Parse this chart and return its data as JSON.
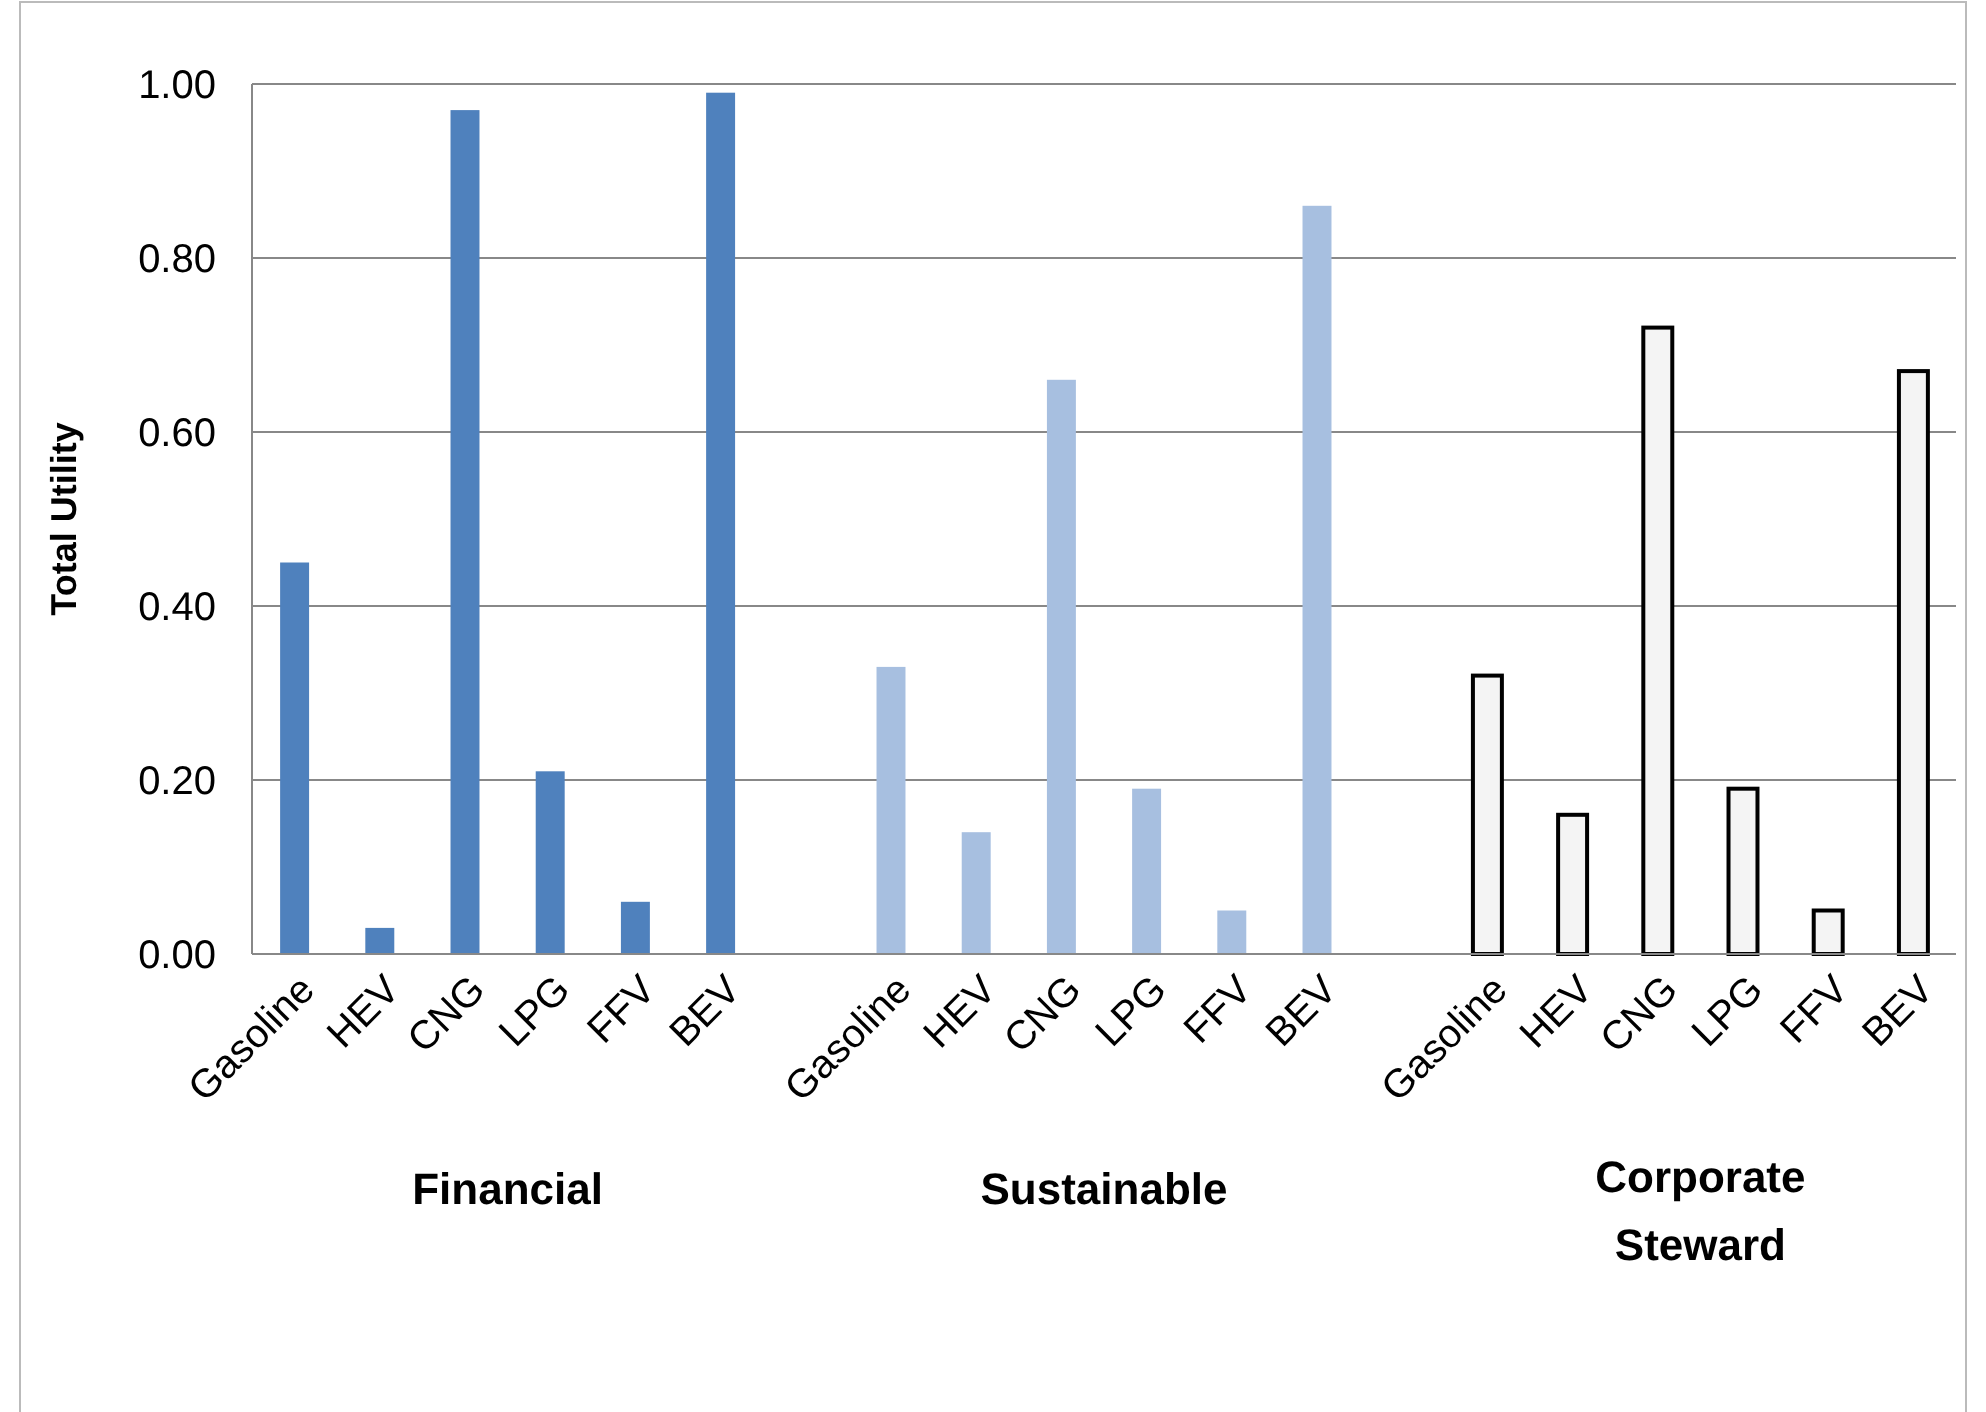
{
  "chart_data": {
    "type": "bar",
    "ylabel": "Total Utility",
    "categories": [
      "Gasoline",
      "HEV",
      "CNG",
      "LPG",
      "FFV",
      "BEV",
      null,
      "Gasoline",
      "HEV",
      "CNG",
      "LPG",
      "FFV",
      "BEV",
      null,
      "Gasoline",
      "HEV",
      "CNG",
      "LPG",
      "FFV",
      "BEV"
    ],
    "series": [
      {
        "color": "#4f81bd",
        "values": [
          0.45,
          0.03,
          0.97,
          0.21,
          0.06,
          0.99,
          null,
          null,
          null,
          null,
          null,
          null,
          null,
          null,
          null,
          null,
          null,
          null,
          null,
          null
        ]
      },
      {
        "color": "#a7bfe0",
        "values": [
          null,
          null,
          null,
          null,
          null,
          null,
          null,
          0.33,
          0.14,
          0.66,
          0.19,
          0.05,
          0.86,
          null,
          null,
          null,
          null,
          null,
          null,
          null
        ]
      },
      {
        "color": "#f4f4f4",
        "values": [
          null,
          null,
          null,
          null,
          null,
          null,
          null,
          null,
          null,
          null,
          null,
          null,
          null,
          null,
          0.32,
          0.16,
          0.72,
          0.19,
          0.05,
          0.67
        ]
      }
    ],
    "ylim": [
      0,
      1
    ],
    "yticks": [
      {
        "value": 0,
        "label": "0.00"
      },
      {
        "value": 0.2,
        "label": "0.20"
      },
      {
        "value": 0.4,
        "label": "0.40"
      },
      {
        "value": 0.6,
        "label": "0.60"
      },
      {
        "value": 0.8,
        "label": "0.80"
      },
      {
        "value": 1,
        "label": "1.00"
      }
    ],
    "annotations": [
      "Financial",
      "Sustainable",
      "Corporate Steward"
    ],
    "grid": "y"
  }
}
